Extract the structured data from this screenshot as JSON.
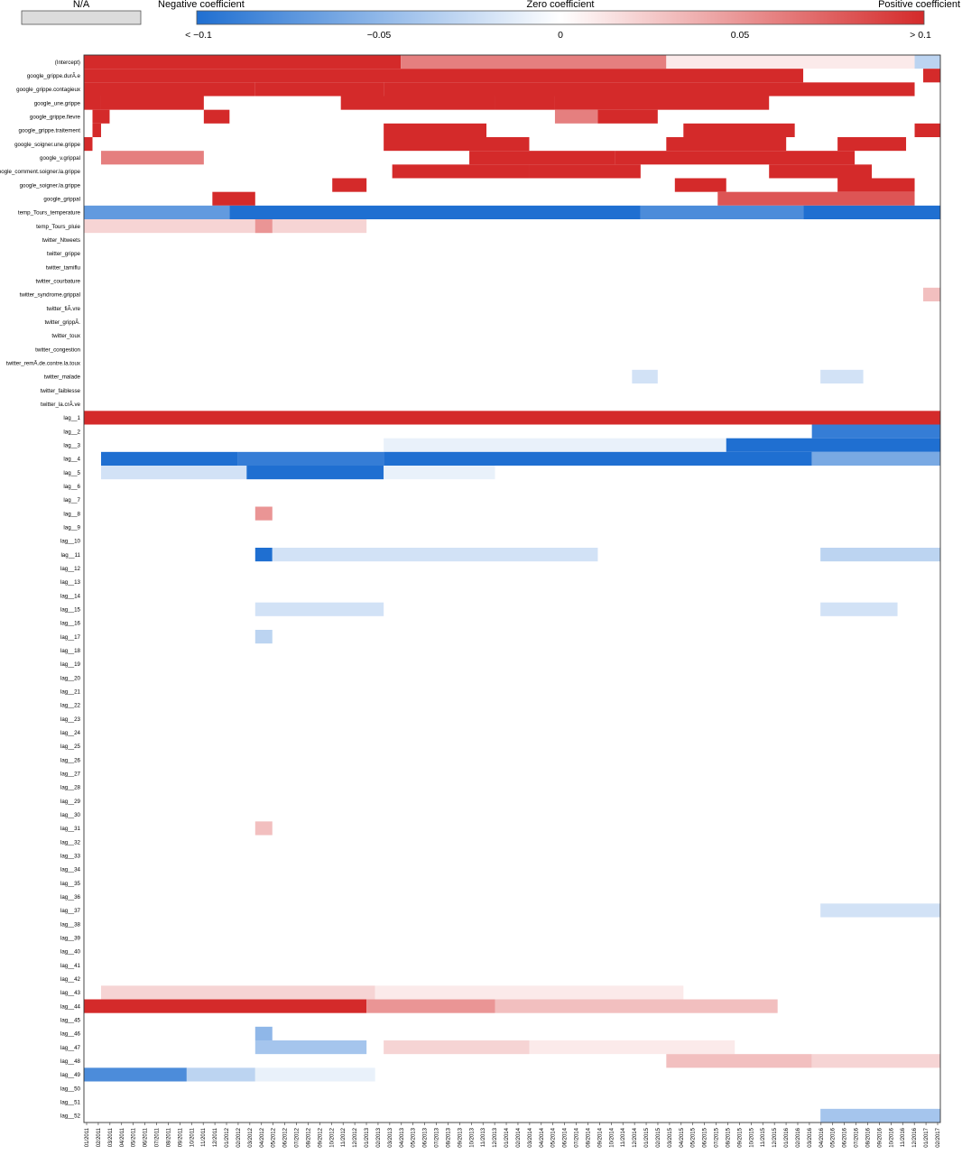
{
  "chart_data": {
    "type": "heatmap",
    "legend": {
      "na_label": "N/A",
      "negative_label": "Negative coefficient",
      "zero_label": "Zero coefficient",
      "positive_label": "Positive coefficient",
      "ticks": [
        "< −0.1",
        "−0.05",
        "0",
        "0.05",
        "> 0.1"
      ],
      "tick_values": [
        -0.1,
        -0.05,
        0,
        0.05,
        0.1
      ],
      "color_negative": "#1f6fd1",
      "color_zero": "#ffffff",
      "color_positive": "#d42a2a",
      "color_na": "#dcdcdc",
      "range": [
        -0.1,
        0.1
      ]
    },
    "rows": [
      "(Intercept)",
      "google_grippe.durÃ.e",
      "google_grippe.contagieux",
      "google_une.grippe",
      "google_grippe.fievre",
      "google_grippe.traitement",
      "google_soigner.une.grippe",
      "google_v.grippal",
      "oogle_comment.soigner.la.grippe",
      "google_soigner.la.grippe",
      "google_grippal",
      "temp_Tours_temperature",
      "temp_Tours_pluie",
      "twitter_Ntweets",
      "twitter_grippe",
      "twitter_tamiflu",
      "twitter_courbature",
      "twitter_syndrome.grippal",
      "twitter_fiÃ.vre",
      "twitter_grippÃ.",
      "twitter_toux",
      "twitter_congestion",
      "twitter_remÃ.de.contre.la.toux",
      "twitter_malade",
      "twitter_faiblesse",
      "twitter_la.crÃ.ve",
      "lag__1",
      "lag__2",
      "lag__3",
      "lag__4",
      "lag__5",
      "lag__6",
      "lag__7",
      "lag__8",
      "lag__9",
      "lag__10",
      "lag__11",
      "lag__12",
      "lag__13",
      "lag__14",
      "lag__15",
      "lag__16",
      "lag__17",
      "lag__18",
      "lag__19",
      "lag__20",
      "lag__21",
      "lag__22",
      "lag__23",
      "lag__24",
      "lag__25",
      "lag__26",
      "lag__27",
      "lag__28",
      "lag__29",
      "lag__30",
      "lag__31",
      "lag__32",
      "lag__33",
      "lag__34",
      "lag__35",
      "lag__36",
      "lag__37",
      "lag__38",
      "lag__39",
      "lag__40",
      "lag__41",
      "lag__42",
      "lag__43",
      "lag__44",
      "lag__45",
      "lag__46",
      "lag__47",
      "lag__48",
      "lag__49",
      "lag__50",
      "lag__51",
      "lag__52"
    ],
    "x_ticks": [
      "01/2011",
      "02/2011",
      "03/2011",
      "04/2011",
      "05/2011",
      "06/2011",
      "07/2011",
      "08/2011",
      "09/2011",
      "10/2011",
      "11/2011",
      "12/2011",
      "01/2012",
      "02/2012",
      "03/2012",
      "04/2012",
      "05/2012",
      "06/2012",
      "07/2012",
      "08/2012",
      "09/2012",
      "10/2012",
      "11/2012",
      "12/2012",
      "01/2013",
      "02/2013",
      "03/2013",
      "04/2013",
      "05/2013",
      "06/2013",
      "07/2013",
      "08/2013",
      "09/2013",
      "10/2013",
      "11/2013",
      "12/2013",
      "01/2014",
      "02/2014",
      "03/2014",
      "04/2014",
      "05/2014",
      "06/2014",
      "07/2014",
      "08/2014",
      "09/2014",
      "10/2014",
      "11/2014",
      "12/2014",
      "01/2015",
      "02/2015",
      "03/2015",
      "04/2015",
      "05/2015",
      "06/2015",
      "07/2015",
      "08/2015",
      "09/2015",
      "10/2015",
      "11/2015",
      "12/2015",
      "01/2016",
      "02/2016",
      "03/2016",
      "04/2016",
      "05/2016",
      "06/2016",
      "07/2016",
      "08/2016",
      "09/2016",
      "10/2016",
      "11/2016",
      "12/2016",
      "01/2017",
      "02/2017"
    ],
    "segments": [
      {
        "row": "(Intercept)",
        "from": 0,
        "to": 0.37,
        "value": 0.1
      },
      {
        "row": "(Intercept)",
        "from": 0.37,
        "to": 0.68,
        "value": 0.06
      },
      {
        "row": "(Intercept)",
        "from": 0.68,
        "to": 0.97,
        "value": 0.01
      },
      {
        "row": "(Intercept)",
        "from": 0.97,
        "to": 1,
        "value": -0.03
      },
      {
        "row": "google_grippe.durÃ.e",
        "from": 0,
        "to": 0.84,
        "value": 0.1
      },
      {
        "row": "google_grippe.durÃ.e",
        "from": 0.84,
        "to": 0.98,
        "value": 0
      },
      {
        "row": "google_grippe.durÃ.e",
        "from": 0.98,
        "to": 1,
        "value": 0.1
      },
      {
        "row": "google_grippe.contagieux",
        "from": 0,
        "to": 0.2,
        "value": 0.1
      },
      {
        "row": "google_grippe.contagieux",
        "from": 0.2,
        "to": 0.35,
        "value": 0.1
      },
      {
        "row": "google_grippe.contagieux",
        "from": 0.35,
        "to": 0.97,
        "value": 0.1
      },
      {
        "row": "google_une.grippe",
        "from": 0,
        "to": 0.02,
        "value": 0.1
      },
      {
        "row": "google_une.grippe",
        "from": 0.02,
        "to": 0.14,
        "value": 0.1
      },
      {
        "row": "google_une.grippe",
        "from": 0.3,
        "to": 0.48,
        "value": 0.1
      },
      {
        "row": "google_une.grippe",
        "from": 0.48,
        "to": 0.55,
        "value": 0.1
      },
      {
        "row": "google_une.grippe",
        "from": 0.55,
        "to": 0.8,
        "value": 0.1
      },
      {
        "row": "google_grippe.fievre",
        "from": 0.01,
        "to": 0.03,
        "value": 0.1
      },
      {
        "row": "google_grippe.fievre",
        "from": 0.14,
        "to": 0.17,
        "value": 0.1
      },
      {
        "row": "google_grippe.fievre",
        "from": 0.55,
        "to": 0.6,
        "value": 0.06
      },
      {
        "row": "google_grippe.fievre",
        "from": 0.6,
        "to": 0.67,
        "value": 0.1
      },
      {
        "row": "google_grippe.traitement",
        "from": 0.01,
        "to": 0.02,
        "value": 0.1
      },
      {
        "row": "google_grippe.traitement",
        "from": 0.35,
        "to": 0.47,
        "value": 0.1
      },
      {
        "row": "google_grippe.traitement",
        "from": 0.7,
        "to": 0.83,
        "value": 0.1
      },
      {
        "row": "google_grippe.traitement",
        "from": 0.97,
        "to": 1,
        "value": 0.1
      },
      {
        "row": "google_soigner.une.grippe",
        "from": 0,
        "to": 0.01,
        "value": 0.1
      },
      {
        "row": "google_soigner.une.grippe",
        "from": 0.35,
        "to": 0.52,
        "value": 0.1
      },
      {
        "row": "google_soigner.une.grippe",
        "from": 0.68,
        "to": 0.82,
        "value": 0.1
      },
      {
        "row": "google_soigner.une.grippe",
        "from": 0.88,
        "to": 0.96,
        "value": 0.1
      },
      {
        "row": "google_v.grippal",
        "from": 0.02,
        "to": 0.14,
        "value": 0.06
      },
      {
        "row": "google_v.grippal",
        "from": 0.45,
        "to": 0.62,
        "value": 0.1
      },
      {
        "row": "google_v.grippal",
        "from": 0.62,
        "to": 0.9,
        "value": 0.1
      },
      {
        "row": "oogle_comment.soigner.la.grippe",
        "from": 0.36,
        "to": 0.52,
        "value": 0.1
      },
      {
        "row": "oogle_comment.soigner.la.grippe",
        "from": 0.52,
        "to": 0.65,
        "value": 0.1
      },
      {
        "row": "oogle_comment.soigner.la.grippe",
        "from": 0.8,
        "to": 0.92,
        "value": 0.1
      },
      {
        "row": "google_soigner.la.grippe",
        "from": 0.29,
        "to": 0.33,
        "value": 0.1
      },
      {
        "row": "google_soigner.la.grippe",
        "from": 0.69,
        "to": 0.75,
        "value": 0.1
      },
      {
        "row": "google_soigner.la.grippe",
        "from": 0.88,
        "to": 0.97,
        "value": 0.1
      },
      {
        "row": "google_grippal",
        "from": 0.15,
        "to": 0.2,
        "value": 0.1
      },
      {
        "row": "google_grippal",
        "from": 0.74,
        "to": 0.97,
        "value": 0.08
      },
      {
        "row": "temp_Tours_temperature",
        "from": 0,
        "to": 0.17,
        "value": -0.07
      },
      {
        "row": "temp_Tours_temperature",
        "from": 0.17,
        "to": 0.65,
        "value": -0.1
      },
      {
        "row": "temp_Tours_temperature",
        "from": 0.65,
        "to": 0.84,
        "value": -0.08
      },
      {
        "row": "temp_Tours_temperature",
        "from": 0.84,
        "to": 1,
        "value": -0.1
      },
      {
        "row": "temp_Tours_pluie",
        "from": 0,
        "to": 0.33,
        "value": 0.02
      },
      {
        "row": "temp_Tours_pluie",
        "from": 0.2,
        "to": 0.22,
        "value": 0.05
      },
      {
        "row": "twitter_syndrome.grippal",
        "from": 0.98,
        "to": 1,
        "value": 0.03
      },
      {
        "row": "twitter_malade",
        "from": 0.64,
        "to": 0.67,
        "value": -0.02
      },
      {
        "row": "twitter_malade",
        "from": 0.86,
        "to": 0.91,
        "value": -0.02
      },
      {
        "row": "lag__1",
        "from": 0,
        "to": 1,
        "value": 0.1
      },
      {
        "row": "lag__2",
        "from": 0.85,
        "to": 1,
        "value": -0.09
      },
      {
        "row": "lag__3",
        "from": 0.35,
        "to": 0.75,
        "value": -0.01
      },
      {
        "row": "lag__3",
        "from": 0.75,
        "to": 1,
        "value": -0.1
      },
      {
        "row": "lag__4",
        "from": 0.02,
        "to": 0.18,
        "value": -0.1
      },
      {
        "row": "lag__4",
        "from": 0.18,
        "to": 0.35,
        "value": -0.09
      },
      {
        "row": "lag__4",
        "from": 0.35,
        "to": 0.85,
        "value": -0.1
      },
      {
        "row": "lag__4",
        "from": 0.85,
        "to": 1,
        "value": -0.06
      },
      {
        "row": "lag__5",
        "from": 0.02,
        "to": 0.19,
        "value": -0.02
      },
      {
        "row": "lag__5",
        "from": 0.19,
        "to": 0.35,
        "value": -0.1
      },
      {
        "row": "lag__5",
        "from": 0.35,
        "to": 0.48,
        "value": -0.01
      },
      {
        "row": "lag__8",
        "from": 0.2,
        "to": 0.22,
        "value": 0.05
      },
      {
        "row": "lag__11",
        "from": 0.2,
        "to": 0.22,
        "value": -0.1
      },
      {
        "row": "lag__11",
        "from": 0.22,
        "to": 0.6,
        "value": -0.02
      },
      {
        "row": "lag__11",
        "from": 0.86,
        "to": 1,
        "value": -0.03
      },
      {
        "row": "lag__15",
        "from": 0.2,
        "to": 0.35,
        "value": -0.02
      },
      {
        "row": "lag__15",
        "from": 0.86,
        "to": 0.95,
        "value": -0.02
      },
      {
        "row": "lag__17",
        "from": 0.2,
        "to": 0.22,
        "value": -0.03
      },
      {
        "row": "lag__31",
        "from": 0.2,
        "to": 0.22,
        "value": 0.03
      },
      {
        "row": "lag__37",
        "from": 0.86,
        "to": 1,
        "value": -0.02
      },
      {
        "row": "lag__43",
        "from": 0.02,
        "to": 0.34,
        "value": 0.02
      },
      {
        "row": "lag__43",
        "from": 0.34,
        "to": 0.7,
        "value": 0.01
      },
      {
        "row": "lag__44",
        "from": 0,
        "to": 0.33,
        "value": 0.1
      },
      {
        "row": "lag__44",
        "from": 0.33,
        "to": 0.48,
        "value": 0.05
      },
      {
        "row": "lag__44",
        "from": 0.48,
        "to": 0.81,
        "value": 0.03
      },
      {
        "row": "lag__46",
        "from": 0.2,
        "to": 0.22,
        "value": -0.05
      },
      {
        "row": "lag__47",
        "from": 0.2,
        "to": 0.33,
        "value": -0.04
      },
      {
        "row": "lag__47",
        "from": 0.35,
        "to": 0.52,
        "value": 0.02
      },
      {
        "row": "lag__47",
        "from": 0.52,
        "to": 0.76,
        "value": 0.01
      },
      {
        "row": "lag__48",
        "from": 0.68,
        "to": 0.85,
        "value": 0.03
      },
      {
        "row": "lag__48",
        "from": 0.85,
        "to": 1,
        "value": 0.02
      },
      {
        "row": "lag__49",
        "from": 0,
        "to": 0.12,
        "value": -0.08
      },
      {
        "row": "lag__49",
        "from": 0.12,
        "to": 0.2,
        "value": -0.03
      },
      {
        "row": "lag__49",
        "from": 0.2,
        "to": 0.34,
        "value": -0.01
      },
      {
        "row": "lag__52",
        "from": 0.86,
        "to": 1,
        "value": -0.04
      }
    ]
  }
}
